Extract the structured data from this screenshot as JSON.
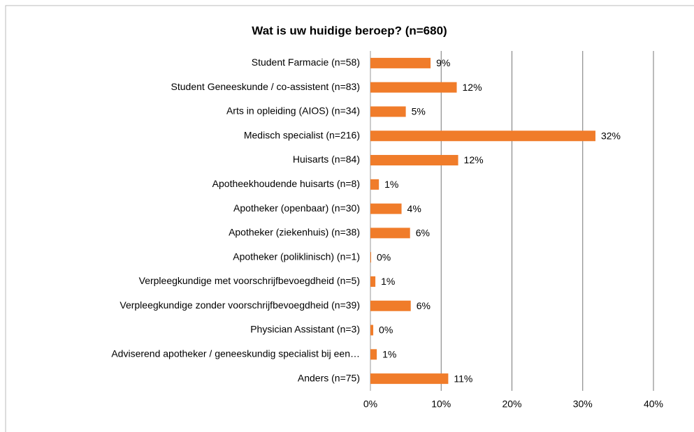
{
  "chart_data": {
    "type": "bar",
    "orientation": "horizontal",
    "title": "Wat is uw huidige beroep? (n=680)",
    "categories": [
      "Student Farmacie (n=58)",
      "Student Geneeskunde / co-assistent (n=83)",
      "Arts in opleiding (AIOS) (n=34)",
      "Medisch specialist (n=216)",
      "Huisarts (n=84)",
      "Apotheekhoudende huisarts (n=8)",
      "Apotheker (openbaar) (n=30)",
      "Apotheker (ziekenhuis) (n=38)",
      "Apotheker (poliklinisch) (n=1)",
      "Verpleegkundige met voorschrijfbevoegdheid (n=5)",
      "Verpleegkundige zonder voorschrijfbevoegdheid (n=39)",
      "Physician Assistant (n=3)",
      "Adviserend apotheker / geneeskundig specialist bij een…",
      "Anders (n=75)"
    ],
    "values": [
      8.5,
      12.2,
      5.0,
      31.8,
      12.4,
      1.2,
      4.4,
      5.6,
      0.1,
      0.7,
      5.7,
      0.4,
      0.9,
      11.0
    ],
    "value_labels": [
      "9%",
      "12%",
      "5%",
      "32%",
      "12%",
      "1%",
      "4%",
      "6%",
      "0%",
      "1%",
      "6%",
      "0%",
      "1%",
      "11%"
    ],
    "color": "#f07c2a",
    "xlim": [
      0,
      40
    ],
    "xticks": [
      {
        "value": 0,
        "label": "0%"
      },
      {
        "value": 10,
        "label": "10%"
      },
      {
        "value": 20,
        "label": "20%"
      },
      {
        "value": 30,
        "label": "30%"
      },
      {
        "value": 40,
        "label": "40%"
      }
    ],
    "grid": true
  }
}
